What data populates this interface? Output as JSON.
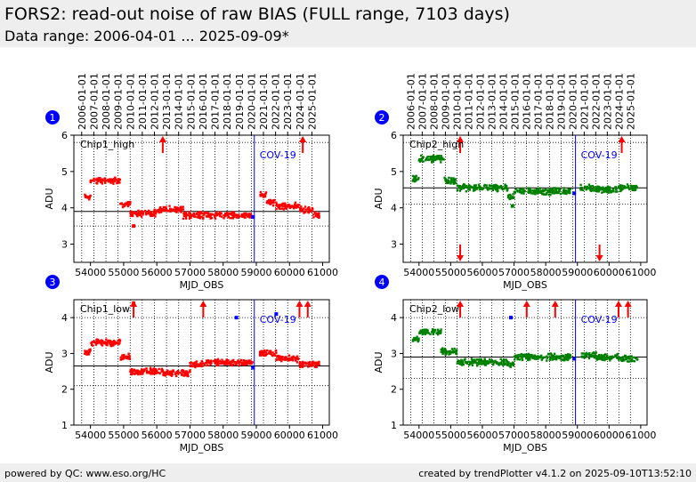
{
  "header": {
    "title": "FORS2: read-out noise of raw BIAS (FULL range, 7103 days)",
    "subtitle": "Data range: 2006-04-01 ... 2025-09-09*"
  },
  "footer": {
    "left": "powered by QC: www.eso.org/HC",
    "right": "created by trendPlotter v4.1.2 on 2025-09-10T13:52:10"
  },
  "colors": {
    "red": "#ff0000",
    "green": "#008000",
    "blue": "#0000ff",
    "black": "#000000",
    "panel_badge": "#0000ff"
  },
  "chart_data": [
    {
      "type": "scatter",
      "panel_number": "1",
      "label": "Chip1_high",
      "marker_label": "COV-19",
      "marker_x": 58940,
      "xlabel": "MJD_OBS",
      "ylabel": "ADU",
      "xlim": [
        53500,
        61200
      ],
      "ylim": [
        2.5,
        6
      ],
      "xticks": [
        54000,
        55000,
        56000,
        57000,
        58000,
        59000,
        60000,
        61000
      ],
      "yticks": [
        3,
        4,
        5,
        6
      ],
      "top_ticks": [
        "2006-01-01",
        "2007-01-01",
        "2008-01-01",
        "2009-01-01",
        "2010-01-01",
        "2011-01-01",
        "2012-01-01",
        "2013-01-01",
        "2014-01-01",
        "2015-01-01",
        "2016-01-01",
        "2017-01-01",
        "2018-01-01",
        "2019-01-01",
        "2020-01-01",
        "2021-01-01",
        "2022-01-01",
        "2023-01-01",
        "2024-01-01",
        "2025-01-01"
      ],
      "hlines": [
        {
          "y": 3.9,
          "style": "solid"
        },
        {
          "y": 3.5,
          "style": "dotted"
        },
        {
          "y": 5.8,
          "style": "dotted"
        }
      ],
      "series": [
        {
          "color": "#ff0000",
          "segments": [
            [
              53800,
              54000,
              4.3
            ],
            [
              54000,
              54900,
              4.75
            ],
            [
              54900,
              55200,
              4.1
            ],
            [
              55200,
              56000,
              3.85
            ],
            [
              56000,
              56800,
              3.95
            ],
            [
              56800,
              57500,
              3.8
            ],
            [
              57500,
              58900,
              3.8
            ],
            [
              59100,
              59300,
              4.35
            ],
            [
              59300,
              59600,
              4.15
            ],
            [
              59600,
              60300,
              4.05
            ],
            [
              60300,
              60700,
              3.95
            ],
            [
              60700,
              60900,
              3.8
            ]
          ],
          "outliers_up": [
            56180,
            60400
          ],
          "points": [
            [
              55300,
              3.5
            ],
            [
              58900,
              3.75
            ]
          ]
        }
      ]
    },
    {
      "type": "scatter",
      "panel_number": "2",
      "label": "Chip2_high",
      "marker_label": "COV-19",
      "marker_x": 58940,
      "xlabel": "MJD_OBS",
      "ylabel": "ADU",
      "xlim": [
        53500,
        61200
      ],
      "ylim": [
        2.5,
        6
      ],
      "xticks": [
        54000,
        55000,
        56000,
        57000,
        58000,
        59000,
        60000,
        61000
      ],
      "yticks": [
        3,
        4,
        5,
        6
      ],
      "top_ticks": [
        "2006-01-01",
        "2007-01-01",
        "2008-01-01",
        "2009-01-01",
        "2010-01-01",
        "2011-01-01",
        "2012-01-01",
        "2013-01-01",
        "2014-01-01",
        "2015-01-01",
        "2016-01-01",
        "2017-01-01",
        "2018-01-01",
        "2019-01-01",
        "2020-01-01",
        "2021-01-01",
        "2022-01-01",
        "2023-01-01",
        "2024-01-01",
        "2025-01-01"
      ],
      "hlines": [
        {
          "y": 4.55,
          "style": "solid"
        },
        {
          "y": 4.1,
          "style": "dotted"
        },
        {
          "y": 5.8,
          "style": "dotted"
        }
      ],
      "series": [
        {
          "color": "#008000",
          "segments": [
            [
              53800,
              54000,
              4.8
            ],
            [
              54000,
              54800,
              5.35
            ],
            [
              54800,
              55200,
              4.75
            ],
            [
              55200,
              56800,
              4.55
            ],
            [
              56800,
              57000,
              4.3
            ],
            [
              57000,
              58800,
              4.45
            ],
            [
              59100,
              59500,
              4.55
            ],
            [
              59500,
              60300,
              4.5
            ],
            [
              60300,
              60900,
              4.55
            ]
          ],
          "outliers_up": [
            55300,
            60400
          ],
          "outliers_down": [
            55300,
            59700
          ],
          "points": [
            [
              56950,
              4.05
            ],
            [
              58900,
              4.4
            ]
          ]
        }
      ]
    },
    {
      "type": "scatter",
      "panel_number": "3",
      "label": "Chip1_low",
      "marker_label": "COV-19",
      "marker_x": 58940,
      "xlabel": "MJD_OBS",
      "ylabel": "ADU",
      "xlim": [
        53500,
        61200
      ],
      "ylim": [
        1,
        4.5
      ],
      "xticks": [
        54000,
        55000,
        56000,
        57000,
        58000,
        59000,
        60000,
        61000
      ],
      "yticks": [
        1,
        2,
        3,
        4
      ],
      "hlines": [
        {
          "y": 2.65,
          "style": "solid"
        },
        {
          "y": 2.1,
          "style": "dotted"
        },
        {
          "y": 4.0,
          "style": "dotted"
        }
      ],
      "series": [
        {
          "color": "#ff0000",
          "segments": [
            [
              53800,
              54000,
              3.05
            ],
            [
              54000,
              54900,
              3.3
            ],
            [
              54900,
              55200,
              2.9
            ],
            [
              55200,
              56200,
              2.5
            ],
            [
              56200,
              57000,
              2.45
            ],
            [
              57000,
              57500,
              2.7
            ],
            [
              57500,
              58900,
              2.75
            ],
            [
              59100,
              59600,
              3.0
            ],
            [
              59600,
              60300,
              2.85
            ],
            [
              60300,
              60900,
              2.7
            ]
          ],
          "outliers_up": [
            55300,
            57400,
            60300,
            60550
          ],
          "points": [
            [
              58400,
              4.0
            ],
            [
              59600,
              4.1
            ],
            [
              58900,
              2.6
            ],
            [
              55300,
              4.4
            ]
          ]
        }
      ]
    },
    {
      "type": "scatter",
      "panel_number": "4",
      "label": "Chip2_low",
      "marker_label": "COV-19",
      "marker_x": 58940,
      "xlabel": "MJD_OBS",
      "ylabel": "ADU",
      "xlim": [
        53500,
        61200
      ],
      "ylim": [
        1,
        4.5
      ],
      "xticks": [
        54000,
        55000,
        56000,
        57000,
        58000,
        59000,
        60000,
        61000
      ],
      "yticks": [
        1,
        2,
        3,
        4
      ],
      "hlines": [
        {
          "y": 2.9,
          "style": "solid"
        },
        {
          "y": 2.3,
          "style": "dotted"
        },
        {
          "y": 4.0,
          "style": "dotted"
        }
      ],
      "series": [
        {
          "color": "#008000",
          "segments": [
            [
              53800,
              54000,
              3.4
            ],
            [
              54000,
              54700,
              3.6
            ],
            [
              54700,
              55200,
              3.05
            ],
            [
              55200,
              56800,
              2.75
            ],
            [
              56800,
              57000,
              2.7
            ],
            [
              57000,
              58800,
              2.9
            ],
            [
              59100,
              59600,
              2.95
            ],
            [
              59600,
              60300,
              2.9
            ],
            [
              60300,
              60900,
              2.85
            ]
          ],
          "outliers_up": [
            55300,
            57400,
            58300,
            60300,
            60600
          ],
          "points": [
            [
              56900,
              4.0
            ],
            [
              58900,
              2.85
            ]
          ]
        }
      ]
    }
  ]
}
